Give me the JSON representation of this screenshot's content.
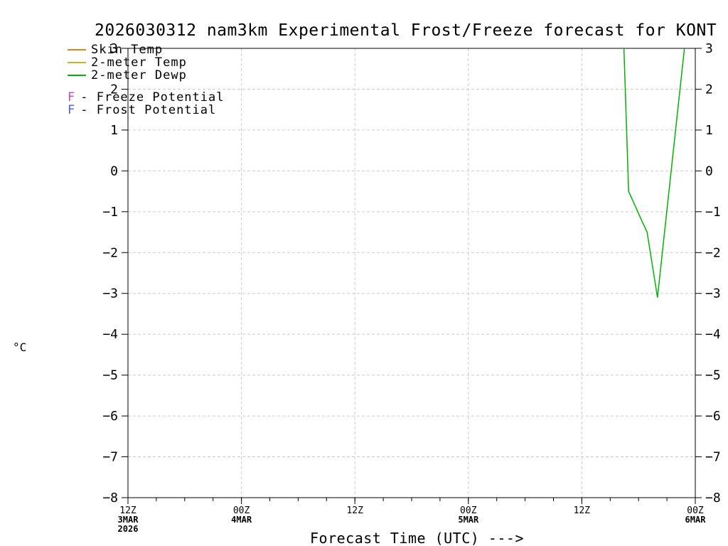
{
  "title": "2026030312 nam3km Experimental Frost/Freeze forecast for KONT",
  "ylabel": "°C",
  "xlabel": "Forecast Time (UTC) --->",
  "colors": {
    "background": "#ffffff",
    "axis": "#000000",
    "grid": "#cccccc"
  },
  "legend": {
    "line_items": [
      {
        "label": "Skin Temp",
        "color": "#e08214"
      },
      {
        "label": "2-meter Temp",
        "color": "#d6b022"
      },
      {
        "label": "2-meter Dewp",
        "color": "#00b400"
      }
    ],
    "flag_items": [
      {
        "flag": "F",
        "label": "- Freeze Potential",
        "color": "#cc44cc"
      },
      {
        "flag": "F",
        "label": "- Frost Potential",
        "color": "#5555ff"
      }
    ]
  },
  "chart_data": {
    "type": "line",
    "title": "2026030312 nam3km Experimental Frost/Freeze forecast for KONT",
    "xlabel": "Forecast Time (UTC) --->",
    "ylabel": "°C",
    "ylim": [
      -8,
      3
    ],
    "xlim_hours": [
      0,
      60
    ],
    "x_unit": "hours from 12Z 3MAR 2026",
    "grid": true,
    "y_ticks": [
      3,
      2,
      1,
      0,
      -1,
      -2,
      -3,
      -4,
      -5,
      -6,
      -7,
      -8
    ],
    "x_major_ticks": [
      {
        "hour": 0,
        "line1": "12Z",
        "line2": "3MAR",
        "line3": "2026"
      },
      {
        "hour": 12,
        "line1": "00Z",
        "line2": "4MAR"
      },
      {
        "hour": 24,
        "line1": "12Z"
      },
      {
        "hour": 36,
        "line1": "00Z",
        "line2": "5MAR"
      },
      {
        "hour": 48,
        "line1": "12Z"
      },
      {
        "hour": 60,
        "line1": "00Z",
        "line2": "6MAR"
      }
    ],
    "x_minor_step_hours": 3,
    "series": [
      {
        "name": "Skin Temp",
        "color": "#e08214",
        "points": []
      },
      {
        "name": "2-meter Temp",
        "color": "#d6b022",
        "points": []
      },
      {
        "name": "2-meter Dewp",
        "color": "#00b400",
        "points": [
          [
            52.45,
            3.0
          ],
          [
            52.95,
            -0.5
          ],
          [
            54.4,
            -1.25
          ],
          [
            54.9,
            -1.5
          ],
          [
            56.0,
            -3.1
          ],
          [
            58.85,
            3.0
          ]
        ]
      }
    ]
  }
}
